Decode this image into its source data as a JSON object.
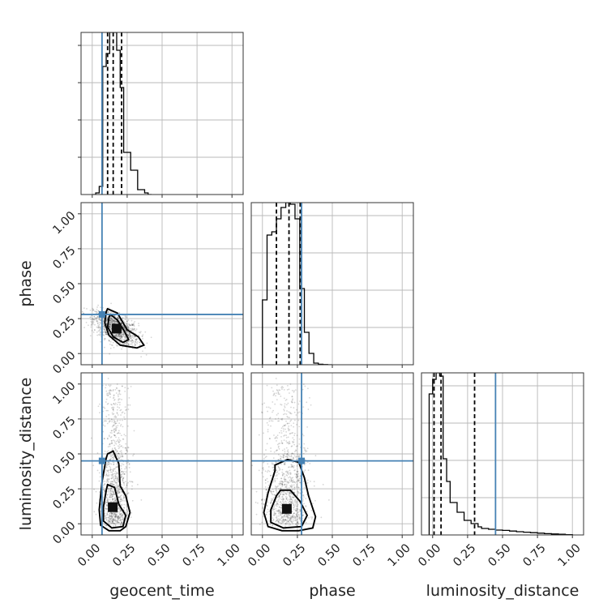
{
  "chart_data": {
    "type": "corner",
    "parameters": [
      "geocent_time",
      "phase",
      "luminosity_distance"
    ],
    "axis_range": [
      -0.08,
      1.08
    ],
    "tick_labels": [
      "0.00",
      "0.25",
      "0.50",
      "0.75",
      "1.00"
    ],
    "tick_values": [
      0.0,
      0.25,
      0.5,
      0.75,
      1.0
    ],
    "grid": true,
    "colors": {
      "truth": "#4682b4",
      "quantile": "#000000",
      "histogram": "#000000"
    },
    "truths": {
      "geocent_time": 0.07,
      "phase": 0.28,
      "luminosity_distance": 0.45
    },
    "quantiles": {
      "geocent_time": [
        0.11,
        0.15,
        0.21
      ],
      "phase": [
        0.1,
        0.19,
        0.27
      ],
      "luminosity_distance": [
        0.01,
        0.06,
        0.3
      ]
    },
    "histograms": {
      "geocent_time": {
        "bin_edges": [
          0.0,
          0.025,
          0.05,
          0.075,
          0.1,
          0.125,
          0.15,
          0.175,
          0.2,
          0.225,
          0.25,
          0.275,
          0.3,
          0.325,
          0.35,
          0.375,
          0.4,
          0.425
        ],
        "counts": [
          0,
          0.01,
          0.05,
          0.79,
          0.87,
          1.0,
          1.0,
          0.89,
          0.66,
          0.26,
          0.26,
          0.15,
          0.15,
          0.03,
          0.03,
          0.01,
          0
        ]
      },
      "phase": {
        "bin_edges": [
          0.0,
          0.033,
          0.067,
          0.1,
          0.133,
          0.167,
          0.2,
          0.233,
          0.267,
          0.3,
          0.333,
          0.367,
          0.4,
          0.433,
          0.467,
          0.5
        ],
        "counts": [
          0.4,
          0.8,
          0.82,
          0.9,
          0.97,
          1.0,
          0.99,
          0.9,
          0.47,
          0.2,
          0.07,
          0.01,
          0.003,
          0.001,
          0
        ]
      },
      "luminosity_distance": {
        "bin_edges": [
          -0.025,
          0.0,
          0.025,
          0.05,
          0.075,
          0.1,
          0.125,
          0.15,
          0.175,
          0.2,
          0.225,
          0.25,
          0.275,
          0.3,
          0.325,
          0.35,
          0.4,
          0.45,
          0.5,
          0.55,
          0.6,
          0.65,
          0.7,
          0.75,
          0.8,
          0.85,
          0.9,
          0.95,
          1.0
        ],
        "counts": [
          0.87,
          0.96,
          1.0,
          0.98,
          0.47,
          0.33,
          0.2,
          0.2,
          0.14,
          0.14,
          0.09,
          0.09,
          0.07,
          0.07,
          0.05,
          0.04,
          0.035,
          0.03,
          0.028,
          0.024,
          0.02,
          0.017,
          0.014,
          0.011,
          0.008,
          0.006,
          0.004,
          0.002
        ]
      }
    },
    "scatter_clouds": {
      "phase_vs_geocent_time": {
        "center": [
          0.17,
          0.18
        ],
        "spread": [
          0.08,
          0.06
        ],
        "correlation": -0.55,
        "contours": [
          {
            "x": [
              0.11,
              0.18,
              0.25,
              0.33,
              0.37,
              0.32,
              0.2,
              0.12,
              0.09,
              0.1
            ],
            "y": [
              0.32,
              0.29,
              0.17,
              0.12,
              0.06,
              0.04,
              0.06,
              0.13,
              0.22,
              0.3
            ]
          },
          {
            "x": [
              0.13,
              0.18,
              0.23,
              0.26,
              0.22,
              0.15,
              0.11,
              0.12
            ],
            "y": [
              0.28,
              0.24,
              0.16,
              0.1,
              0.08,
              0.12,
              0.19,
              0.26
            ]
          }
        ]
      },
      "luminosity_distance_vs_geocent_time": {
        "center": [
          0.16,
          0.1
        ],
        "spread": [
          0.05,
          0.22
        ],
        "correlation": 0.0,
        "contours": [
          {
            "x": [
              0.11,
              0.15,
              0.19,
              0.2,
              0.24,
              0.27,
              0.24,
              0.2,
              0.12,
              0.06,
              0.05,
              0.07,
              0.1
            ],
            "y": [
              0.5,
              0.52,
              0.43,
              0.27,
              0.2,
              0.08,
              -0.02,
              -0.05,
              -0.05,
              -0.01,
              0.1,
              0.3,
              0.47
            ]
          },
          {
            "x": [
              0.11,
              0.16,
              0.19,
              0.24,
              0.22,
              0.14,
              0.08,
              0.08,
              0.1
            ],
            "y": [
              0.28,
              0.26,
              0.14,
              0.06,
              -0.02,
              -0.03,
              0.02,
              0.12,
              0.24
            ]
          }
        ]
      },
      "luminosity_distance_vs_phase": {
        "center": [
          0.17,
          0.12
        ],
        "spread": [
          0.08,
          0.22
        ],
        "correlation": 0.0,
        "contours": [
          {
            "x": [
              0.09,
              0.18,
              0.26,
              0.3,
              0.33,
              0.38,
              0.36,
              0.26,
              0.14,
              0.04,
              0.01,
              0.04,
              0.09
            ],
            "y": [
              0.42,
              0.46,
              0.44,
              0.33,
              0.2,
              0.05,
              -0.03,
              -0.05,
              -0.05,
              -0.02,
              0.08,
              0.22,
              0.38
            ]
          },
          {
            "x": [
              0.13,
              0.2,
              0.27,
              0.32,
              0.28,
              0.15,
              0.06,
              0.06,
              0.1
            ],
            "y": [
              0.24,
              0.24,
              0.16,
              0.06,
              -0.02,
              -0.03,
              0.01,
              0.1,
              0.2
            ]
          }
        ]
      }
    }
  }
}
